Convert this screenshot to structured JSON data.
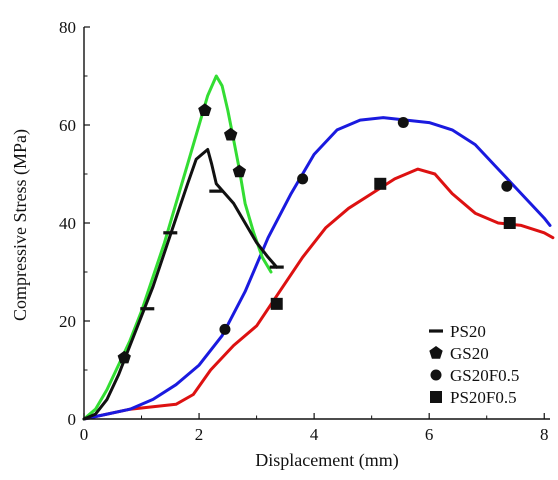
{
  "chart_data": {
    "type": "line",
    "title": "",
    "xlabel": "Displacement (mm)",
    "ylabel": "Compressive Stress (MPa)",
    "xlim": [
      0,
      8.1
    ],
    "ylim": [
      0,
      80
    ],
    "xticks": [
      "0",
      "2",
      "4",
      "6",
      "8"
    ],
    "yticks": [
      "0",
      "20",
      "40",
      "60",
      "80"
    ],
    "grid": false,
    "legend_position": "bottom-right",
    "series": [
      {
        "name": "PS20",
        "color": "#111111",
        "marker": "dash",
        "x": [
          0,
          0.2,
          0.4,
          0.6,
          0.8,
          1.0,
          1.2,
          1.4,
          1.6,
          1.8,
          1.95,
          2.05,
          2.15,
          2.22,
          2.3,
          2.45,
          2.6,
          2.8,
          3.0,
          3.2,
          3.35
        ],
        "y": [
          0,
          1,
          4,
          9,
          15,
          21,
          27,
          34,
          41,
          48,
          53,
          54,
          55,
          52,
          48,
          46,
          44,
          40,
          36,
          33,
          31
        ],
        "marker_points": [
          [
            1.1,
            22.5
          ],
          [
            1.5,
            38
          ],
          [
            2.3,
            46.5
          ],
          [
            3.35,
            31
          ]
        ]
      },
      {
        "name": "GS20",
        "color": "#33dd33",
        "marker": "pentagon",
        "x": [
          0,
          0.2,
          0.4,
          0.6,
          0.8,
          1.0,
          1.2,
          1.4,
          1.6,
          1.8,
          2.0,
          2.15,
          2.3,
          2.4,
          2.5,
          2.6,
          2.7,
          2.8,
          2.95,
          3.1,
          3.25
        ],
        "y": [
          0,
          2,
          6,
          11,
          16,
          22,
          29,
          36,
          44,
          52,
          60,
          66,
          70,
          68,
          63,
          57,
          51,
          44,
          38,
          33,
          30
        ],
        "marker_points": [
          [
            0.7,
            12.5
          ],
          [
            2.1,
            63
          ],
          [
            2.55,
            58
          ],
          [
            2.7,
            50.5
          ]
        ]
      },
      {
        "name": "GS20F0.5",
        "color": "#1a1adf",
        "marker": "circle",
        "x": [
          0,
          0.4,
          0.8,
          1.2,
          1.6,
          2.0,
          2.4,
          2.8,
          3.2,
          3.6,
          4.0,
          4.4,
          4.8,
          5.2,
          5.6,
          6.0,
          6.4,
          6.8,
          7.2,
          7.6,
          8.0,
          8.1
        ],
        "y": [
          0,
          1,
          2,
          4,
          7,
          11,
          17,
          26,
          37,
          46,
          54,
          59,
          61,
          61.5,
          61,
          60.5,
          59,
          56,
          51,
          46,
          41,
          39.5
        ],
        "marker_points": [
          [
            2.45,
            18.3
          ],
          [
            3.8,
            49
          ],
          [
            5.55,
            60.5
          ],
          [
            7.35,
            47.5
          ]
        ]
      },
      {
        "name": "PS20F0.5",
        "color": "#dd1111",
        "marker": "square",
        "x": [
          0,
          0.4,
          0.8,
          1.2,
          1.6,
          1.9,
          2.2,
          2.6,
          3.0,
          3.4,
          3.8,
          4.2,
          4.6,
          5.0,
          5.4,
          5.8,
          6.1,
          6.4,
          6.8,
          7.2,
          7.6,
          8.0,
          8.15
        ],
        "y": [
          0,
          1,
          2,
          2.5,
          3,
          5,
          10,
          15,
          19,
          26,
          33,
          39,
          43,
          46,
          49,
          51,
          50,
          46,
          42,
          40,
          39.5,
          38,
          37
        ],
        "marker_points": [
          [
            3.35,
            23.5
          ],
          [
            5.15,
            48
          ],
          [
            7.4,
            40
          ]
        ]
      }
    ]
  }
}
